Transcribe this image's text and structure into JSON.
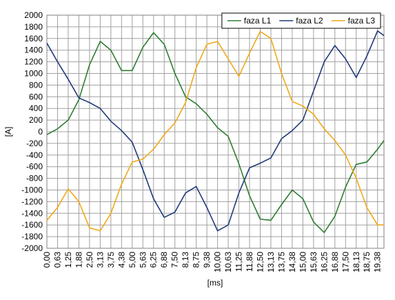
{
  "chart_data": {
    "type": "line",
    "x_label": "[ms]",
    "y_label": "[A]",
    "x": [
      0,
      0.625,
      1.25,
      1.875,
      2.5,
      3.125,
      3.75,
      4.375,
      5,
      5.625,
      6.25,
      6.875,
      7.5,
      8.125,
      8.75,
      9.375,
      10,
      10.625,
      11.25,
      11.875,
      12.5,
      13.125,
      13.75,
      14.375,
      15,
      15.625,
      16.25,
      16.875,
      17.5,
      18.125,
      18.75,
      19.375,
      19.75
    ],
    "series": [
      {
        "name": "faza L1",
        "color": "#2e7d32",
        "values": [
          -50,
          50,
          200,
          550,
          1150,
          1550,
          1400,
          1050,
          1050,
          1450,
          1700,
          1500,
          1000,
          600,
          480,
          300,
          70,
          -80,
          -550,
          -1100,
          -1500,
          -1520,
          -1250,
          -1000,
          -1150,
          -1550,
          -1730,
          -1450,
          -950,
          -560,
          -520,
          -300,
          -150
        ]
      },
      {
        "name": "faza L2",
        "color": "#1f3a7a",
        "values": [
          1520,
          1200,
          900,
          580,
          500,
          400,
          180,
          20,
          -180,
          -650,
          -1150,
          -1470,
          -1380,
          -1050,
          -940,
          -1300,
          -1700,
          -1600,
          -1050,
          -620,
          -540,
          -450,
          -120,
          20,
          200,
          700,
          1200,
          1480,
          1250,
          930,
          1300,
          1730,
          1650
        ]
      },
      {
        "name": "faza L3",
        "color": "#f0a818",
        "values": [
          -1520,
          -1300,
          -980,
          -1200,
          -1650,
          -1700,
          -1400,
          -900,
          -520,
          -470,
          -300,
          -50,
          150,
          500,
          1100,
          1500,
          1550,
          1250,
          950,
          1350,
          1720,
          1600,
          1000,
          520,
          440,
          300,
          50,
          -150,
          -400,
          -800,
          -1300,
          -1600,
          -1600
        ]
      }
    ],
    "xlim": [
      0,
      19.75
    ],
    "xticks": [
      {
        "value": 0,
        "label": "0,00"
      },
      {
        "value": 0.625,
        "label": "0,63"
      },
      {
        "value": 1.25,
        "label": "1,25"
      },
      {
        "value": 1.875,
        "label": "1,88"
      },
      {
        "value": 2.5,
        "label": "2,50"
      },
      {
        "value": 3.125,
        "label": "3,13"
      },
      {
        "value": 3.75,
        "label": "3,75"
      },
      {
        "value": 4.375,
        "label": "4,38"
      },
      {
        "value": 5,
        "label": "5,00"
      },
      {
        "value": 5.625,
        "label": "5,63"
      },
      {
        "value": 6.25,
        "label": "6,25"
      },
      {
        "value": 6.875,
        "label": "6,88"
      },
      {
        "value": 7.5,
        "label": "7,50"
      },
      {
        "value": 8.125,
        "label": "8,13"
      },
      {
        "value": 8.75,
        "label": "8,75"
      },
      {
        "value": 9.375,
        "label": "9,38"
      },
      {
        "value": 10,
        "label": "10,00"
      },
      {
        "value": 10.625,
        "label": "10,63"
      },
      {
        "value": 11.25,
        "label": "11,25"
      },
      {
        "value": 11.875,
        "label": "11,88"
      },
      {
        "value": 12.5,
        "label": "12,50"
      },
      {
        "value": 13.125,
        "label": "13,13"
      },
      {
        "value": 13.75,
        "label": "13,75"
      },
      {
        "value": 14.375,
        "label": "14,38"
      },
      {
        "value": 15,
        "label": "15,00"
      },
      {
        "value": 15.625,
        "label": "15,63"
      },
      {
        "value": 16.25,
        "label": "16,25"
      },
      {
        "value": 16.875,
        "label": "16,88"
      },
      {
        "value": 17.5,
        "label": "17,50"
      },
      {
        "value": 18.125,
        "label": "18,13"
      },
      {
        "value": 18.75,
        "label": "18,75"
      },
      {
        "value": 19.375,
        "label": "19,38"
      }
    ],
    "ylim": [
      -2000,
      2000
    ],
    "yticks": [
      -2000,
      -1800,
      -1600,
      -1400,
      -1200,
      -1000,
      -800,
      -600,
      -400,
      -200,
      0,
      200,
      400,
      600,
      800,
      1000,
      1200,
      1400,
      1600,
      1800,
      2000
    ],
    "grid": true,
    "legend": "top-right"
  }
}
